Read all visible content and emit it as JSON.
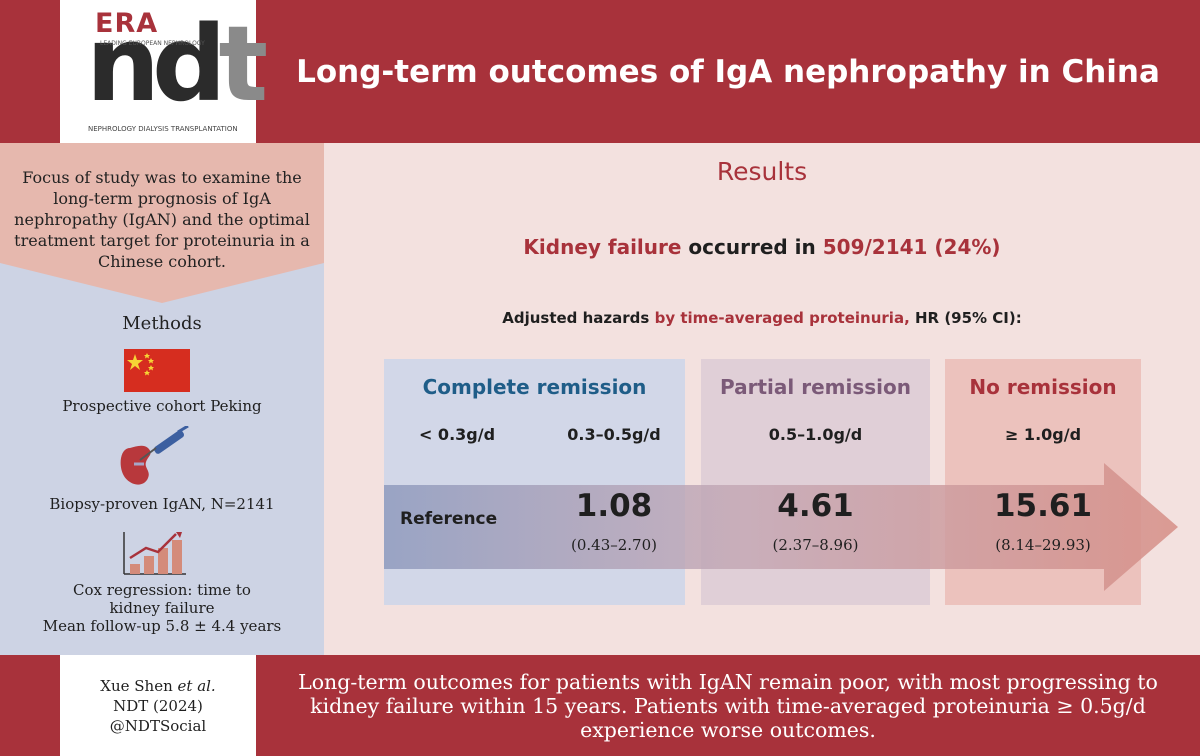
{
  "header": {
    "title": "Long-term outcomes of IgA nephropathy in China",
    "logo": {
      "brand": "ERA",
      "tagline": "LEADING EUROPEAN NEPHROLOGY",
      "journal_ndt_nd": "nd",
      "journal_ndt_t": "t",
      "footer": "NEPHROLOGY DIALYSIS TRANSPLANTATION"
    }
  },
  "left": {
    "focus": "Focus of study was to examine the long-term prognosis of IgA nephropathy (IgAN) and the optimal treatment target for proteinuria in a Chinese cohort.",
    "methods_title": "Methods",
    "cohort": "Prospective cohort Peking",
    "biopsy": "Biopsy-proven IgAN, N=2141",
    "cox_line1": "Cox regression: time to",
    "cox_line2": "kidney failure",
    "cox_line3": "Mean follow-up 5.8 ± 4.4 years",
    "icons": [
      "china-flag-icon",
      "kidney-biopsy-icon",
      "bar-chart-icon"
    ]
  },
  "results": {
    "title": "Results",
    "kf_part1": "Kidney failure",
    "kf_part2": " occurred in ",
    "kf_part3": "509/2141 (24%)",
    "adj_part1": "Adjusted hazards ",
    "adj_part2": "by time-averaged proteinuria,",
    "adj_part3": " HR (95% CI):",
    "groups": {
      "complete": "Complete remission",
      "partial": "Partial remission",
      "none": "No remission"
    },
    "reference_label": "Reference",
    "levels": [
      {
        "label": "< 0.3g/d",
        "hr": null,
        "ci": null
      },
      {
        "label": "0.3–0.5g/d",
        "hr": "1.08",
        "ci": "(0.43–2.70)"
      },
      {
        "label": "0.5–1.0g/d",
        "hr": "4.61",
        "ci": "(2.37–8.96)"
      },
      {
        "label": "≥ 1.0g/d",
        "hr": "15.61",
        "ci": "(8.14–29.93)"
      }
    ]
  },
  "footer": {
    "author": "Xue Shen",
    "etal": " et al.",
    "journal": "NDT (2024)",
    "handle": "@NDTSocial",
    "conclusion": "Long-term outcomes for patients with IgAN remain poor, with most progressing to kidney failure within 15 years. Patients with time-averaged proteinuria ≥ 0.5g/d experience worse outcomes."
  },
  "colors": {
    "brand_red": "#a8323b",
    "complete_blue": "#1f5d88",
    "partial_purple": "#7b5a78",
    "left_panel": "#cdd3e4",
    "right_panel": "#f3e1df"
  }
}
